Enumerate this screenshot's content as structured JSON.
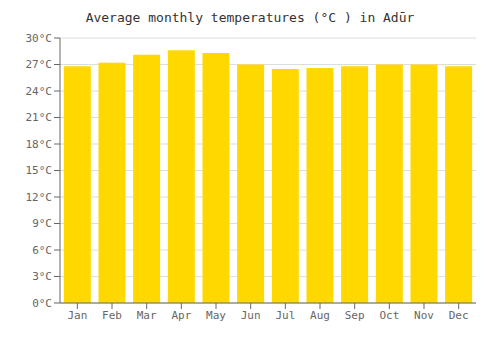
{
  "chart_data": {
    "type": "bar",
    "title": "Average monthly temperatures (°C ) in Adūr",
    "categories": [
      "Jan",
      "Feb",
      "Mar",
      "Apr",
      "May",
      "Jun",
      "Jul",
      "Aug",
      "Sep",
      "Oct",
      "Nov",
      "Dec"
    ],
    "values": [
      26.8,
      27.2,
      28.1,
      28.6,
      28.3,
      27.0,
      26.5,
      26.6,
      26.8,
      27.0,
      27.0,
      26.8
    ],
    "color": "#FFD800",
    "ylim": [
      0,
      30
    ],
    "yticks": [
      {
        "value": 0,
        "label": "0°C"
      },
      {
        "value": 3,
        "label": "3°C"
      },
      {
        "value": 6,
        "label": "6°C"
      },
      {
        "value": 9,
        "label": "9°C"
      },
      {
        "value": 12,
        "label": "12°C"
      },
      {
        "value": 15,
        "label": "15°C"
      },
      {
        "value": 18,
        "label": "18°C"
      },
      {
        "value": 21,
        "label": "21°C"
      },
      {
        "value": 24,
        "label": "24°C"
      },
      {
        "value": 27,
        "label": "27°C"
      },
      {
        "value": 30,
        "label": "30°C"
      }
    ],
    "grid": true
  }
}
